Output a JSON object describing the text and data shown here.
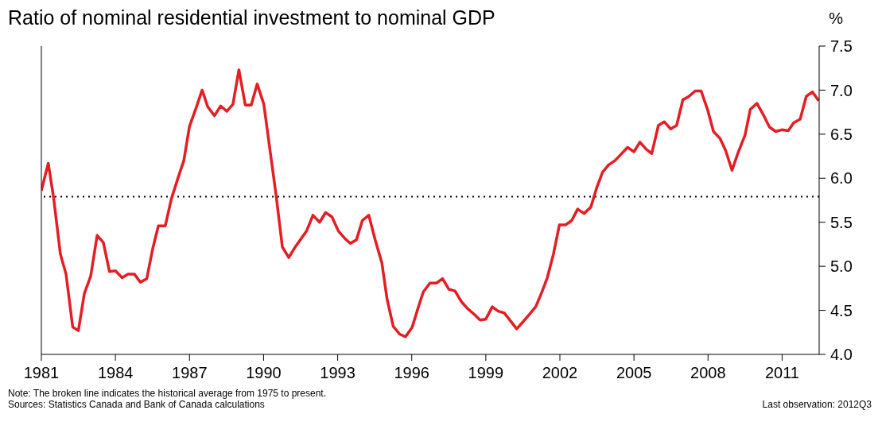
{
  "chart_data": {
    "type": "line",
    "title": "Ratio of nominal residential investment to nominal GDP",
    "ylabel": "%",
    "x": [
      1981.0,
      1981.28,
      1981.5,
      1981.77,
      1982.0,
      1982.27,
      1982.5,
      1982.74,
      1983.0,
      1983.26,
      1983.51,
      1983.76,
      1984.0,
      1984.27,
      1984.51,
      1984.77,
      1985.01,
      1985.27,
      1985.51,
      1985.74,
      1986.02,
      1986.26,
      1986.52,
      1986.77,
      1987.0,
      1987.27,
      1987.51,
      1987.74,
      1988.01,
      1988.26,
      1988.51,
      1988.76,
      1989.0,
      1989.26,
      1989.5,
      1989.74,
      1990.01,
      1990.24,
      1990.51,
      1990.76,
      1991.02,
      1991.26,
      1991.74,
      1992.0,
      1992.27,
      1992.51,
      1992.77,
      1993.03,
      1993.28,
      1993.51,
      1993.76,
      1994.0,
      1994.26,
      1994.53,
      1994.79,
      1995.0,
      1995.25,
      1995.51,
      1995.75,
      1996.02,
      1996.26,
      1996.47,
      1996.74,
      1997.0,
      1997.25,
      1997.5,
      1997.75,
      1998.01,
      1998.26,
      1998.51,
      1998.77,
      1999.0,
      1999.26,
      1999.5,
      1999.75,
      2000.0,
      2000.25,
      2000.51,
      2000.78,
      2001.02,
      2001.26,
      2001.49,
      2001.74,
      2001.98,
      2002.23,
      2002.48,
      2002.72,
      2002.98,
      2003.25,
      2003.49,
      2003.73,
      2003.97,
      2004.23,
      2004.47,
      2004.74,
      2005.0,
      2005.24,
      2005.49,
      2005.72,
      2005.99,
      2006.23,
      2006.49,
      2006.73,
      2006.98,
      2007.23,
      2007.48,
      2007.72,
      2007.98,
      2008.22,
      2008.49,
      2008.72,
      2008.97,
      2009.23,
      2009.5,
      2009.71,
      2009.98,
      2010.24,
      2010.49,
      2010.74,
      2010.99,
      2011.25,
      2011.47,
      2011.73,
      2011.98,
      2012.23,
      2012.48
    ],
    "series": [
      {
        "color": "#e31e24",
        "values": [
          5.86,
          6.17,
          5.77,
          5.14,
          4.91,
          4.31,
          4.27,
          4.69,
          4.89,
          5.35,
          5.27,
          4.94,
          4.95,
          4.87,
          4.91,
          4.91,
          4.82,
          4.86,
          5.2,
          5.46,
          5.46,
          5.76,
          5.99,
          6.2,
          6.59,
          6.8,
          7.0,
          6.81,
          6.71,
          6.82,
          6.76,
          6.84,
          7.23,
          6.83,
          6.83,
          7.07,
          6.84,
          6.36,
          5.8,
          5.22,
          5.1,
          5.21,
          5.4,
          5.58,
          5.5,
          5.61,
          5.56,
          5.4,
          5.32,
          5.26,
          5.3,
          5.52,
          5.58,
          5.29,
          5.04,
          4.63,
          4.32,
          4.23,
          4.2,
          4.31,
          4.53,
          4.71,
          4.81,
          4.81,
          4.86,
          4.74,
          4.72,
          4.6,
          4.52,
          4.46,
          4.39,
          4.4,
          4.54,
          4.49,
          4.47,
          4.38,
          4.29,
          4.37,
          4.46,
          4.54,
          4.7,
          4.87,
          5.14,
          5.47,
          5.47,
          5.52,
          5.65,
          5.6,
          5.67,
          5.89,
          6.07,
          6.15,
          6.2,
          6.27,
          6.35,
          6.3,
          6.41,
          6.33,
          6.28,
          6.6,
          6.64,
          6.56,
          6.6,
          6.89,
          6.93,
          6.99,
          6.99,
          6.78,
          6.53,
          6.45,
          6.31,
          6.09,
          6.3,
          6.49,
          6.78,
          6.85,
          6.72,
          6.58,
          6.53,
          6.55,
          6.54,
          6.63,
          6.67,
          6.93,
          6.98,
          6.88
        ]
      }
    ],
    "xlim": [
      1981,
      2012.5
    ],
    "xticks": [
      1981,
      1984,
      1987,
      1990,
      1993,
      1996,
      1999,
      2002,
      2005,
      2008,
      2011
    ],
    "ylim": [
      4,
      7.5
    ],
    "yticks": [
      {
        "value": 4,
        "label": "4.0"
      },
      4.5,
      {
        "value": 5,
        "label": "5.0"
      },
      5.5,
      {
        "value": 6,
        "label": "6.0"
      },
      6.5,
      {
        "value": 7,
        "label": "7.0"
      },
      7.5
    ],
    "ref_lines": [
      {
        "axis": "y",
        "value": 5.79,
        "color": "#000000",
        "line_style": "dotted"
      }
    ],
    "annotations": [
      "Note: The broken line indicates the historical average from 1975 to present.",
      "Sources: Statistics Canada and Bank of Canada calculations",
      "Last observation: 2012Q3"
    ],
    "grid": false,
    "legend": false,
    "marker": "none",
    "line_style": "solid"
  }
}
